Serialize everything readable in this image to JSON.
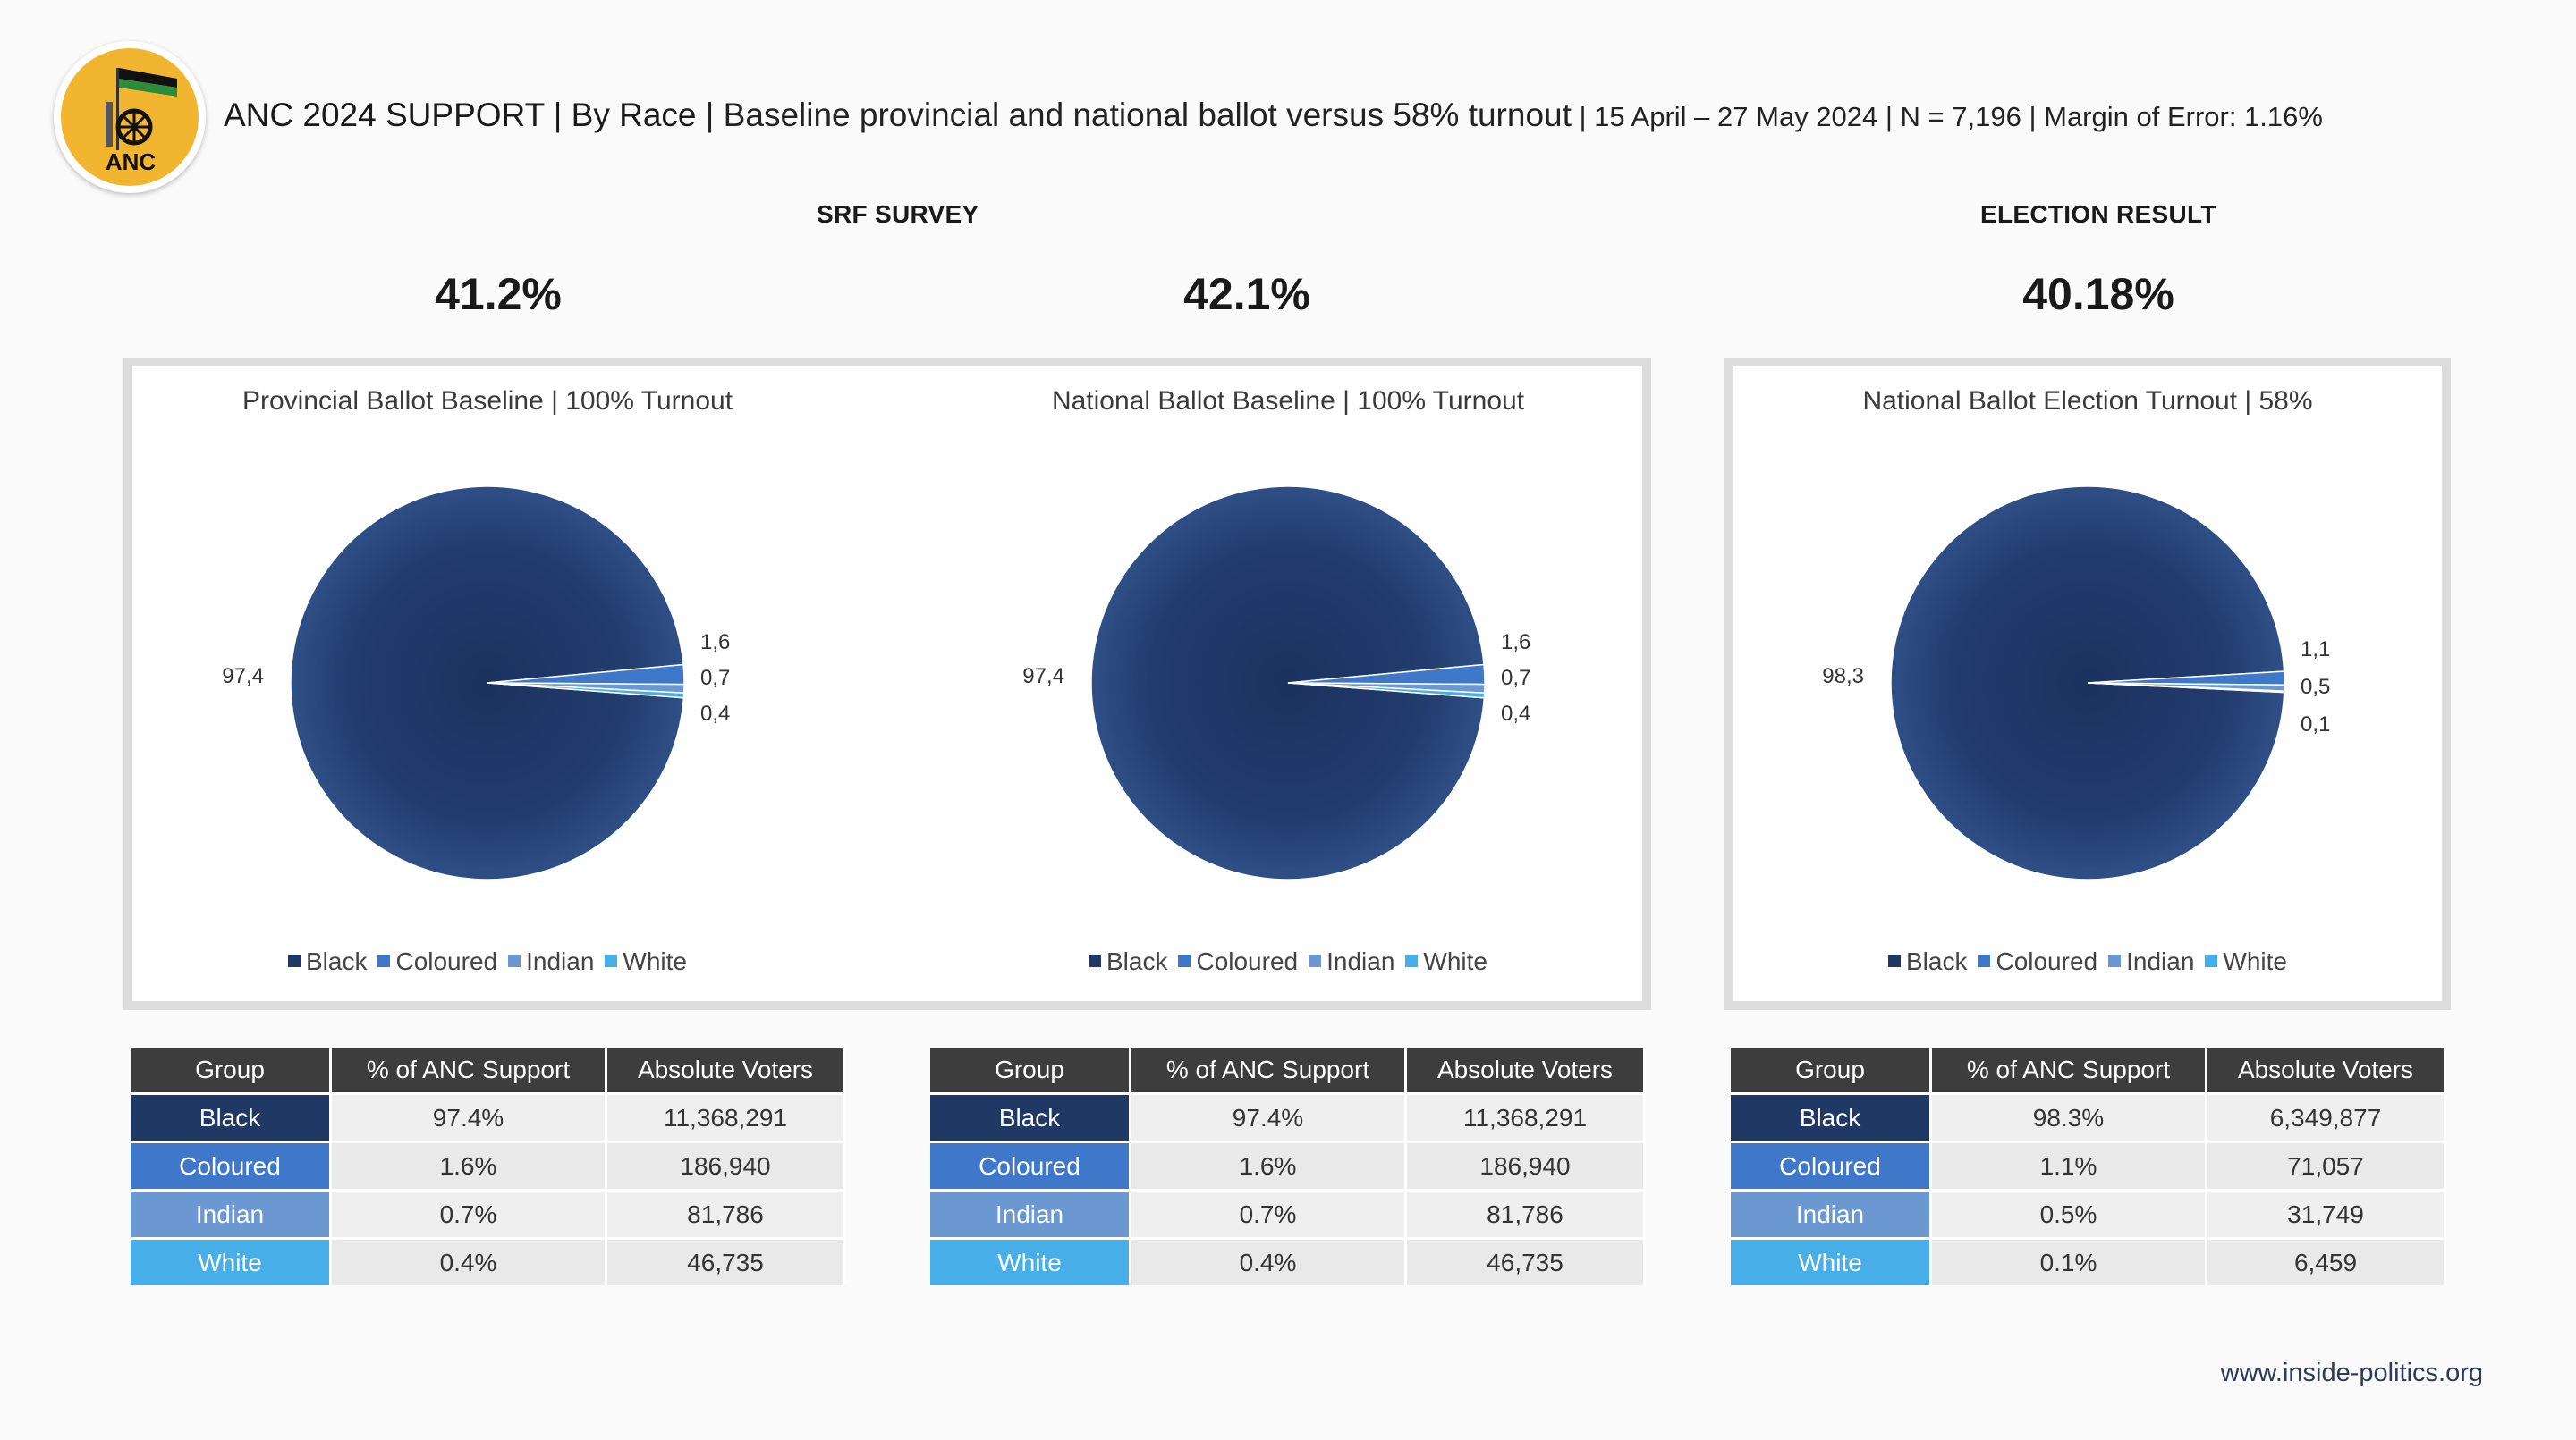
{
  "header": {
    "title_main": "ANC 2024 SUPPORT | By Race",
    "title_sub": " | Baseline provincial and national ballot versus 58% turnout",
    "title_meta": " | 15 April – 27 May 2024 | N = 7,196 | Margin of Error: 1.16%",
    "logo_text": "ANC"
  },
  "sections": [
    {
      "label": "SRF SURVEY"
    },
    {
      "label": "ELECTION RESULT"
    }
  ],
  "headline_values": [
    "41.2%",
    "42.1%",
    "40.18%"
  ],
  "colors": {
    "Black": "#1f3864",
    "Coloured": "#3f78c8",
    "Indian": "#6b98d0",
    "White": "#47aee8"
  },
  "legend": [
    "Black",
    "Coloured",
    "Indian",
    "White"
  ],
  "chart_data": [
    {
      "type": "pie",
      "title": "Provincial Ballot Baseline | 100% Turnout",
      "categories": [
        "Black",
        "Coloured",
        "Indian",
        "White"
      ],
      "values": [
        97.4,
        1.6,
        0.7,
        0.4
      ],
      "labels": [
        "97,4",
        "1,6",
        "0,7",
        "0,4"
      ],
      "legend": "bottom"
    },
    {
      "type": "pie",
      "title": "National Ballot Baseline | 100% Turnout",
      "categories": [
        "Black",
        "Coloured",
        "Indian",
        "White"
      ],
      "values": [
        97.4,
        1.6,
        0.7,
        0.4
      ],
      "labels": [
        "97,4",
        "1,6",
        "0,7",
        "0,4"
      ],
      "legend": "bottom"
    },
    {
      "type": "pie",
      "title": "National Ballot Election Turnout | 58%",
      "categories": [
        "Black",
        "Coloured",
        "Indian",
        "White"
      ],
      "values": [
        98.3,
        1.1,
        0.5,
        0.1
      ],
      "labels": [
        "98,3",
        "1,1",
        "0,5",
        "0,1"
      ],
      "legend": "bottom"
    }
  ],
  "tables": [
    {
      "headers": [
        "Group",
        "% of ANC Support",
        "Absolute Voters"
      ],
      "rows": [
        [
          "Black",
          "97.4%",
          "11,368,291"
        ],
        [
          "Coloured",
          "1.6%",
          "186,940"
        ],
        [
          "Indian",
          "0.7%",
          "81,786"
        ],
        [
          "White",
          "0.4%",
          "46,735"
        ]
      ]
    },
    {
      "headers": [
        "Group",
        "% of ANC Support",
        "Absolute Voters"
      ],
      "rows": [
        [
          "Black",
          "97.4%",
          "11,368,291"
        ],
        [
          "Coloured",
          "1.6%",
          "186,940"
        ],
        [
          "Indian",
          "0.7%",
          "81,786"
        ],
        [
          "White",
          "0.4%",
          "46,735"
        ]
      ]
    },
    {
      "headers": [
        "Group",
        "% of ANC Support",
        "Absolute Voters"
      ],
      "rows": [
        [
          "Black",
          "98.3%",
          "6,349,877"
        ],
        [
          "Coloured",
          "1.1%",
          "71,057"
        ],
        [
          "Indian",
          "0.5%",
          "31,749"
        ],
        [
          "White",
          "0.1%",
          "6,459"
        ]
      ]
    }
  ],
  "footer": {
    "url": "www.inside-politics.org"
  }
}
